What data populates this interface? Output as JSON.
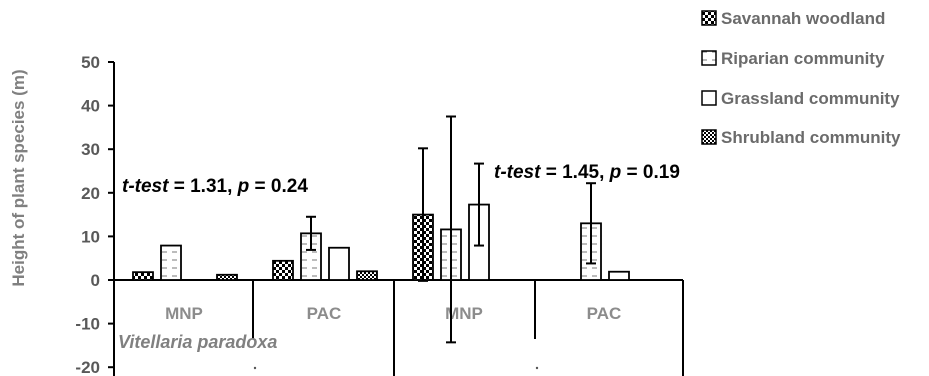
{
  "chart_data": {
    "type": "bar",
    "ylabel": "Height of plant species (m)",
    "ylim": [
      -20,
      50
    ],
    "yticks": [
      50,
      40,
      30,
      20,
      10,
      0,
      -10,
      -20
    ],
    "grid": false,
    "legend_position": "top-right",
    "series": [
      {
        "name": "Savannah woodland",
        "pattern": "checker"
      },
      {
        "name": "Riparian community",
        "pattern": "dashes"
      },
      {
        "name": "Grassland community",
        "pattern": "none"
      },
      {
        "name": "Shrubland community",
        "pattern": "dots"
      }
    ],
    "groups": [
      {
        "species": "Vitellaria paradoxa",
        "annotation": {
          "test": "t-test",
          "eq1": " = 1.31, ",
          "p": "p",
          "eq2": " = 0.24"
        },
        "categories": [
          {
            "label": "MNP",
            "values": [
              1.8,
              7.9,
              0,
              1.2
            ],
            "errors": [
              null,
              null,
              null,
              null
            ]
          },
          {
            "label": "PAC",
            "values": [
              4.4,
              10.7,
              7.4,
              2.0
            ],
            "errors": [
              null,
              3.8,
              null,
              null
            ]
          }
        ]
      },
      {
        "species": "",
        "annotation": {
          "test": "t-test",
          "eq1": " = 1.45, ",
          "p": "p",
          "eq2": " = 0.19"
        },
        "categories": [
          {
            "label": "MNP",
            "values": [
              15.0,
              11.6,
              17.3,
              0
            ],
            "errors": [
              15.2,
              25.9,
              9.4,
              null
            ]
          },
          {
            "label": "PAC",
            "values": [
              0,
              13.0,
              1.9,
              0
            ],
            "errors": [
              null,
              9.2,
              null,
              null
            ]
          }
        ]
      }
    ]
  }
}
